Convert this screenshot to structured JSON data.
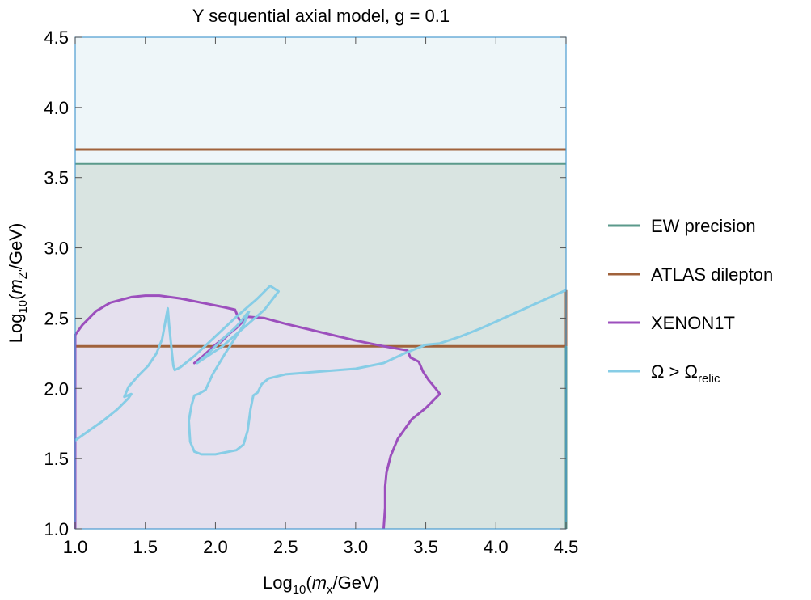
{
  "chart_data": {
    "type": "region",
    "title": "Y sequential axial model, g = 0.1",
    "xlabel": {
      "prefix": "Log",
      "sub": "10",
      "mid": "(",
      "var": "m",
      "var_sub": "x",
      "suffix": "/GeV)"
    },
    "ylabel": {
      "prefix": "Log",
      "sub": "10",
      "mid": "(",
      "var": "m",
      "var_sub": "Z'",
      "suffix": "/GeV)"
    },
    "xlim": [
      1.0,
      4.5
    ],
    "ylim": [
      1.0,
      4.5
    ],
    "xticks": [
      "1.0",
      "1.5",
      "2.0",
      "2.5",
      "3.0",
      "3.5",
      "4.0",
      "4.5"
    ],
    "yticks": [
      "1.0",
      "1.5",
      "2.0",
      "2.5",
      "3.0",
      "3.5",
      "4.0",
      "4.5"
    ],
    "grid": false,
    "legend_position": "right",
    "background_color": "#eef6f9",
    "series": [
      {
        "name": "EW precision",
        "color": "#5b9a8b",
        "fill": "#d9e4e1",
        "boundary": [
          [
            1.0,
            3.6
          ],
          [
            4.5,
            3.6
          ]
        ]
      },
      {
        "name": "ATLAS dilepton",
        "color": "#a0623b",
        "fill": "#efe6e0",
        "boundary": [
          [
            1.0,
            3.7
          ],
          [
            4.5,
            3.7
          ]
        ],
        "boundary2": [
          [
            1.0,
            2.3
          ],
          [
            4.5,
            2.3
          ]
        ]
      },
      {
        "name": "XENON1T",
        "color": "#9c4fbd",
        "fill": "#e6dff0",
        "boundary": [
          [
            1.0,
            2.38
          ],
          [
            1.05,
            2.45
          ],
          [
            1.15,
            2.55
          ],
          [
            1.25,
            2.61
          ],
          [
            1.4,
            2.65
          ],
          [
            1.5,
            2.66
          ],
          [
            1.6,
            2.66
          ],
          [
            1.75,
            2.64
          ],
          [
            1.9,
            2.61
          ],
          [
            2.05,
            2.58
          ],
          [
            2.14,
            2.56
          ],
          [
            2.16,
            2.51
          ],
          [
            2.18,
            2.47
          ],
          [
            2.05,
            2.34
          ],
          [
            1.85,
            2.18
          ],
          [
            1.9,
            2.22
          ],
          [
            2.0,
            2.31
          ],
          [
            2.15,
            2.43
          ],
          [
            2.23,
            2.51
          ],
          [
            2.35,
            2.5
          ],
          [
            2.5,
            2.46
          ],
          [
            2.75,
            2.4
          ],
          [
            3.0,
            2.34
          ],
          [
            3.2,
            2.3
          ],
          [
            3.37,
            2.27
          ],
          [
            3.39,
            2.22
          ],
          [
            3.45,
            2.19
          ],
          [
            3.48,
            2.12
          ],
          [
            3.52,
            2.06
          ],
          [
            3.57,
            2.0
          ],
          [
            3.6,
            1.96
          ],
          [
            3.5,
            1.86
          ],
          [
            3.4,
            1.78
          ],
          [
            3.3,
            1.64
          ],
          [
            3.25,
            1.52
          ],
          [
            3.22,
            1.4
          ],
          [
            3.21,
            1.3
          ],
          [
            3.21,
            1.15
          ],
          [
            3.2,
            1.0
          ]
        ]
      },
      {
        "name": "Ω > Ω",
        "name_sub": "relic",
        "color": "#87cde6",
        "boundary_a": [
          [
            1.0,
            1.63
          ],
          [
            1.1,
            1.7
          ],
          [
            1.2,
            1.77
          ],
          [
            1.3,
            1.85
          ],
          [
            1.38,
            1.93
          ],
          [
            1.4,
            1.96
          ],
          [
            1.35,
            1.94
          ],
          [
            1.38,
            2.01
          ],
          [
            1.45,
            2.09
          ],
          [
            1.52,
            2.16
          ],
          [
            1.58,
            2.25
          ],
          [
            1.62,
            2.35
          ],
          [
            1.64,
            2.46
          ],
          [
            1.66,
            2.57
          ],
          [
            1.67,
            2.45
          ],
          [
            1.69,
            2.25
          ],
          [
            1.7,
            2.16
          ],
          [
            1.71,
            2.13
          ],
          [
            1.75,
            2.15
          ],
          [
            1.85,
            2.23
          ],
          [
            2.0,
            2.37
          ],
          [
            2.15,
            2.51
          ],
          [
            2.3,
            2.64
          ],
          [
            2.39,
            2.73
          ],
          [
            2.45,
            2.69
          ],
          [
            2.35,
            2.56
          ],
          [
            2.2,
            2.43
          ],
          [
            2.05,
            2.3
          ],
          [
            1.9,
            2.2
          ],
          [
            1.87,
            2.18
          ],
          [
            1.95,
            2.25
          ],
          [
            2.05,
            2.35
          ],
          [
            2.15,
            2.44
          ],
          [
            2.24,
            2.55
          ]
        ],
        "boundary_b": [
          [
            2.24,
            2.55
          ],
          [
            2.2,
            2.45
          ],
          [
            2.07,
            2.25
          ],
          [
            1.98,
            2.1
          ],
          [
            1.93,
            1.99
          ],
          [
            1.88,
            1.96
          ],
          [
            1.85,
            1.95
          ],
          [
            1.83,
            1.88
          ],
          [
            1.81,
            1.77
          ],
          [
            1.82,
            1.62
          ],
          [
            1.85,
            1.55
          ],
          [
            1.9,
            1.53
          ],
          [
            2.0,
            1.53
          ],
          [
            2.15,
            1.56
          ],
          [
            2.2,
            1.6
          ],
          [
            2.23,
            1.7
          ],
          [
            2.25,
            1.85
          ],
          [
            2.27,
            1.95
          ],
          [
            2.3,
            1.97
          ],
          [
            2.33,
            2.03
          ],
          [
            2.38,
            2.07
          ],
          [
            2.5,
            2.1
          ],
          [
            2.75,
            2.12
          ],
          [
            3.0,
            2.14
          ],
          [
            3.2,
            2.18
          ],
          [
            3.35,
            2.25
          ],
          [
            3.45,
            2.29
          ],
          [
            3.5,
            2.31
          ],
          [
            3.6,
            2.32
          ],
          [
            3.75,
            2.37
          ],
          [
            3.9,
            2.43
          ],
          [
            4.1,
            2.52
          ],
          [
            4.3,
            2.61
          ],
          [
            4.5,
            2.7
          ]
        ]
      }
    ]
  }
}
